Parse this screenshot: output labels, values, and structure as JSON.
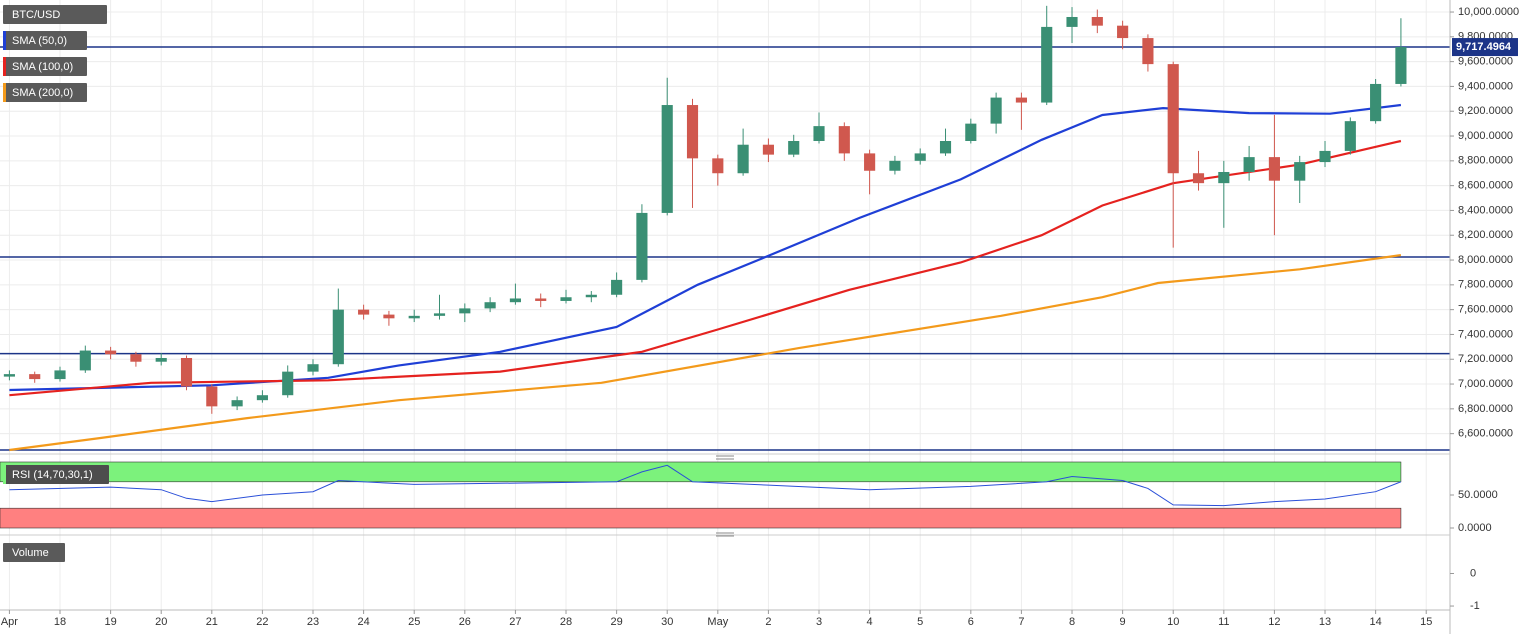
{
  "chart_data": {
    "type": "candlestick",
    "symbol": "BTC/USD",
    "up_color": "#3a8f74",
    "down_color": "#d0584e",
    "x": [
      0,
      0.5,
      1,
      1.5,
      2,
      2.5,
      3,
      3.5,
      4,
      4.5,
      5,
      5.5,
      6,
      6.5,
      7,
      7.5,
      8,
      8.5,
      9,
      9.5,
      10,
      10.5,
      11,
      11.5,
      12,
      12.5,
      13,
      13.5,
      14,
      14.5,
      15,
      15.5,
      16,
      16.5,
      17,
      17.5,
      18,
      18.5,
      19,
      19.5,
      20,
      20.5,
      21,
      21.5,
      22,
      22.5,
      23,
      23.5,
      24,
      24.5,
      25,
      25.5,
      26,
      26.5,
      27,
      27.5
    ],
    "open": [
      7060,
      7080,
      7040,
      7110,
      7270,
      7240,
      7180,
      7210,
      6980,
      6820,
      6870,
      6910,
      7100,
      7160,
      7600,
      7560,
      7530,
      7550,
      7570,
      7610,
      7660,
      7690,
      7670,
      7700,
      7720,
      7840,
      8380,
      9250,
      8820,
      8700,
      8930,
      8850,
      8960,
      9080,
      8860,
      8720,
      8800,
      8860,
      8960,
      9100,
      9310,
      9270,
      9880,
      9960,
      9890,
      9790,
      9580,
      8700,
      8620,
      8710,
      8830,
      8640,
      8790,
      8880,
      9120,
      9420
    ],
    "high": [
      7110,
      7100,
      7140,
      7310,
      7300,
      7260,
      7250,
      7230,
      7000,
      6900,
      6950,
      7150,
      7200,
      7770,
      7640,
      7590,
      7600,
      7720,
      7650,
      7700,
      7810,
      7730,
      7760,
      7750,
      7900,
      8450,
      9470,
      9300,
      8850,
      9060,
      8980,
      9010,
      9190,
      9110,
      8890,
      8840,
      8900,
      9060,
      9140,
      9350,
      9350,
      10050,
      10040,
      10020,
      9930,
      9820,
      9600,
      8880,
      8800,
      8920,
      9170,
      8840,
      8960,
      9150,
      9460,
      9950
    ],
    "low": [
      7030,
      7010,
      7020,
      7090,
      7200,
      7140,
      7150,
      6950,
      6760,
      6790,
      6850,
      6890,
      7070,
      7140,
      7520,
      7470,
      7500,
      7520,
      7500,
      7580,
      7640,
      7620,
      7650,
      7660,
      7700,
      7820,
      8360,
      8420,
      8600,
      8680,
      8790,
      8830,
      8940,
      8800,
      8530,
      8690,
      8770,
      8840,
      8940,
      9020,
      9050,
      9250,
      9750,
      9830,
      9700,
      9520,
      8100,
      8560,
      8260,
      8640,
      8200,
      8460,
      8750,
      8850,
      9100,
      9400
    ],
    "close": [
      7080,
      7040,
      7110,
      7270,
      7240,
      7180,
      7210,
      6980,
      6820,
      6870,
      6910,
      7100,
      7160,
      7600,
      7560,
      7530,
      7550,
      7570,
      7610,
      7660,
      7690,
      7670,
      7700,
      7720,
      7840,
      8380,
      9250,
      8820,
      8700,
      8930,
      8850,
      8960,
      9080,
      8860,
      8720,
      8800,
      8860,
      8960,
      9100,
      9310,
      9270,
      9880,
      9960,
      9890,
      9790,
      9580,
      8700,
      8620,
      8710,
      8830,
      8640,
      8790,
      8880,
      9120,
      9420,
      9717.4964
    ],
    "series": [
      {
        "name": "SMA (50,0)",
        "color": "#1f3fd6",
        "x": [
          0,
          4,
          6.3,
          7.7,
          9.7,
          12,
          13.6,
          14.8,
          16.8,
          18.8,
          20.4,
          21.6,
          22.8,
          24.5,
          26.1,
          27.5
        ],
        "values": [
          6952,
          6990,
          7050,
          7150,
          7260,
          7460,
          7800,
          8000,
          8340,
          8650,
          8970,
          9170,
          9225,
          9185,
          9180,
          9250
        ]
      },
      {
        "name": "SMA (100,0)",
        "color": "#e5221f",
        "x": [
          0,
          2.8,
          6.3,
          9.7,
          12.5,
          14,
          16.6,
          18.8,
          20.4,
          21.6,
          23,
          25.5,
          27.5
        ],
        "values": [
          6910,
          7010,
          7030,
          7100,
          7260,
          7440,
          7760,
          7980,
          8200,
          8440,
          8620,
          8770,
          8960
        ]
      },
      {
        "name": "SMA (200,0)",
        "color": "#f39a1b",
        "x": [
          0,
          1.8,
          4.7,
          7.7,
          11.7,
          15.6,
          19.6,
          21.6,
          22.7,
          25.5,
          27.5
        ],
        "values": [
          6468,
          6565,
          6725,
          6870,
          7010,
          7290,
          7550,
          7700,
          7815,
          7925,
          8040
        ]
      }
    ],
    "hlines": [
      {
        "value": 9717.4964,
        "label": "9,717.4964"
      },
      8025,
      7245,
      6468
    ],
    "hline_color": "#1c3488",
    "xlim": [
      -0.186,
      28.47
    ],
    "xticks": [
      {
        "value": 0,
        "label": "Apr"
      },
      {
        "value": 1,
        "label": "18"
      },
      {
        "value": 2,
        "label": "19"
      },
      {
        "value": 3,
        "label": "20"
      },
      {
        "value": 4,
        "label": "21"
      },
      {
        "value": 5,
        "label": "22"
      },
      {
        "value": 6,
        "label": "23"
      },
      {
        "value": 7,
        "label": "24"
      },
      {
        "value": 8,
        "label": "25"
      },
      {
        "value": 9,
        "label": "26"
      },
      {
        "value": 10,
        "label": "27"
      },
      {
        "value": 11,
        "label": "28"
      },
      {
        "value": 12,
        "label": "29"
      },
      {
        "value": 13,
        "label": "30"
      },
      {
        "value": 14,
        "label": "May"
      },
      {
        "value": 15,
        "label": "2"
      },
      {
        "value": 16,
        "label": "3"
      },
      {
        "value": 17,
        "label": "4"
      },
      {
        "value": 18,
        "label": "5"
      },
      {
        "value": 19,
        "label": "6"
      },
      {
        "value": 20,
        "label": "7"
      },
      {
        "value": 21,
        "label": "8"
      },
      {
        "value": 22,
        "label": "9"
      },
      {
        "value": 23,
        "label": "10"
      },
      {
        "value": 24,
        "label": "11"
      },
      {
        "value": 25,
        "label": "12"
      },
      {
        "value": 26,
        "label": "13"
      },
      {
        "value": 27,
        "label": "14"
      },
      {
        "value": 28,
        "label": "15"
      }
    ],
    "ylim": [
      6452,
      10097
    ],
    "yticks": [
      {
        "value": 6600,
        "label": "6,600.0000"
      },
      {
        "value": 6800,
        "label": "6,800.0000"
      },
      {
        "value": 7000,
        "label": "7,000.0000"
      },
      {
        "value": 7200,
        "label": "7,200.0000"
      },
      {
        "value": 7400,
        "label": "7,400.0000"
      },
      {
        "value": 7600,
        "label": "7,600.0000"
      },
      {
        "value": 7800,
        "label": "7,800.0000"
      },
      {
        "value": 8000,
        "label": "8,000.0000"
      },
      {
        "value": 8200,
        "label": "8,200.0000"
      },
      {
        "value": 8400,
        "label": "8,400.0000"
      },
      {
        "value": 8600,
        "label": "8,600.0000"
      },
      {
        "value": 8800,
        "label": "8,800.0000"
      },
      {
        "value": 9000,
        "label": "9,000.0000"
      },
      {
        "value": 9200,
        "label": "9,200.0000"
      },
      {
        "value": 9400,
        "label": "9,400.0000"
      },
      {
        "value": 9600,
        "label": "9,600.0000"
      },
      {
        "value": 9800,
        "label": "9,800.0000"
      },
      {
        "value": 10000,
        "label": "10,000.0000"
      }
    ],
    "grid": true,
    "rsi": {
      "name": "RSI (14,70,30,1)",
      "color": "#2a4fd8",
      "x": [
        0,
        2,
        3,
        3.5,
        4,
        5,
        6,
        6.5,
        8,
        10,
        12,
        12.5,
        13,
        13.5,
        15,
        17,
        19,
        20.5,
        21,
        22,
        22.5,
        23,
        24,
        25,
        26,
        27,
        27.5
      ],
      "values": [
        58,
        62,
        58,
        45,
        40,
        50,
        55,
        72,
        66,
        68,
        70,
        85,
        95,
        70,
        65,
        58,
        63,
        70,
        78,
        72,
        60,
        35,
        34,
        40,
        44,
        55,
        70
      ],
      "overbought": 70,
      "oversold": 30,
      "overbought_color": "#7cf27c",
      "oversold_color": "#ff8080",
      "ylim": [
        0,
        100
      ],
      "yticks": [
        {
          "value": 0,
          "label": "0.0000"
        },
        {
          "value": 50,
          "label": "50.0000"
        }
      ]
    },
    "volume": {
      "name": "Volume",
      "ylim": [
        -1.06,
        1.09
      ],
      "yticks": [
        0,
        -1
      ]
    }
  }
}
